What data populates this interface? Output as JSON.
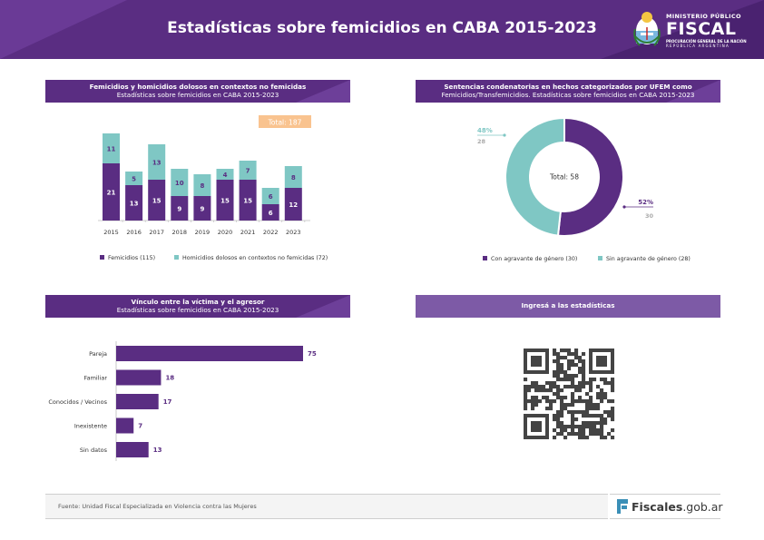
{
  "header": {
    "title": "Estadísticas sobre femicidios en CABA 2015-2023",
    "logo": {
      "line1": "MINISTERIO PÚBLICO",
      "line2": "FISCAL",
      "line3": "PROCURACIÓN GENERAL DE LA NACIÓN",
      "line4": "REPÚBLICA ARGENTINA"
    }
  },
  "sections": {
    "bar_title_1": "Femicidios y homicidios dolosos en contextos no femicidas",
    "bar_title_2": "Estadísticas sobre femicidios en CABA 2015-2023",
    "donut_title_1": "Sentencias condenatorias en hechos categorizados por UFEM como",
    "donut_title_2": "Femicidios/Transfemicidios. Estadísticas sobre femicidios en CABA 2015-2023",
    "hbar_title_1": "Vínculo entre la víctima y el agresor",
    "hbar_title_2": "Estadísticas sobre femicidios en CABA 2015-2023",
    "qr_title": "Ingresá a las estadísticas"
  },
  "colors": {
    "purple": "#5a2d82",
    "teal": "#7fc7c4",
    "total_badge": "#f9c38f"
  },
  "chart_data": [
    {
      "type": "bar",
      "stacked": true,
      "categories": [
        "2015",
        "2016",
        "2017",
        "2018",
        "2019",
        "2020",
        "2021",
        "2022",
        "2023"
      ],
      "series": [
        {
          "name": "Femicidios (115)",
          "values": [
            21,
            13,
            15,
            9,
            9,
            15,
            15,
            6,
            12
          ]
        },
        {
          "name": "Homicidios dolosos en contextos no femicidas (72)",
          "values": [
            11,
            5,
            13,
            10,
            8,
            4,
            7,
            6,
            8
          ]
        }
      ],
      "annotation": "Total: 187",
      "legend_position": "bottom"
    },
    {
      "type": "pie",
      "donut": true,
      "center_label": "Total: 58",
      "slices": [
        {
          "name": "Con agravante de género (30)",
          "value": 30,
          "percent_label": "52%",
          "count_label": "30"
        },
        {
          "name": "Sin agravante de género (28)",
          "value": 28,
          "percent_label": "48%",
          "count_label": "28"
        }
      ],
      "legend_position": "bottom"
    },
    {
      "type": "bar",
      "orientation": "horizontal",
      "categories": [
        "Pareja",
        "Familiar",
        "Conocidos / Vecinos",
        "Inexistente",
        "Sin datos"
      ],
      "values": [
        75,
        18,
        17,
        7,
        13
      ]
    }
  ],
  "footer": {
    "source": "Fuente: Unidad Fiscal Especializada en Violencia contra las Mujeres",
    "site_name": "Fiscales",
    "site_domain": ".gob.ar"
  }
}
